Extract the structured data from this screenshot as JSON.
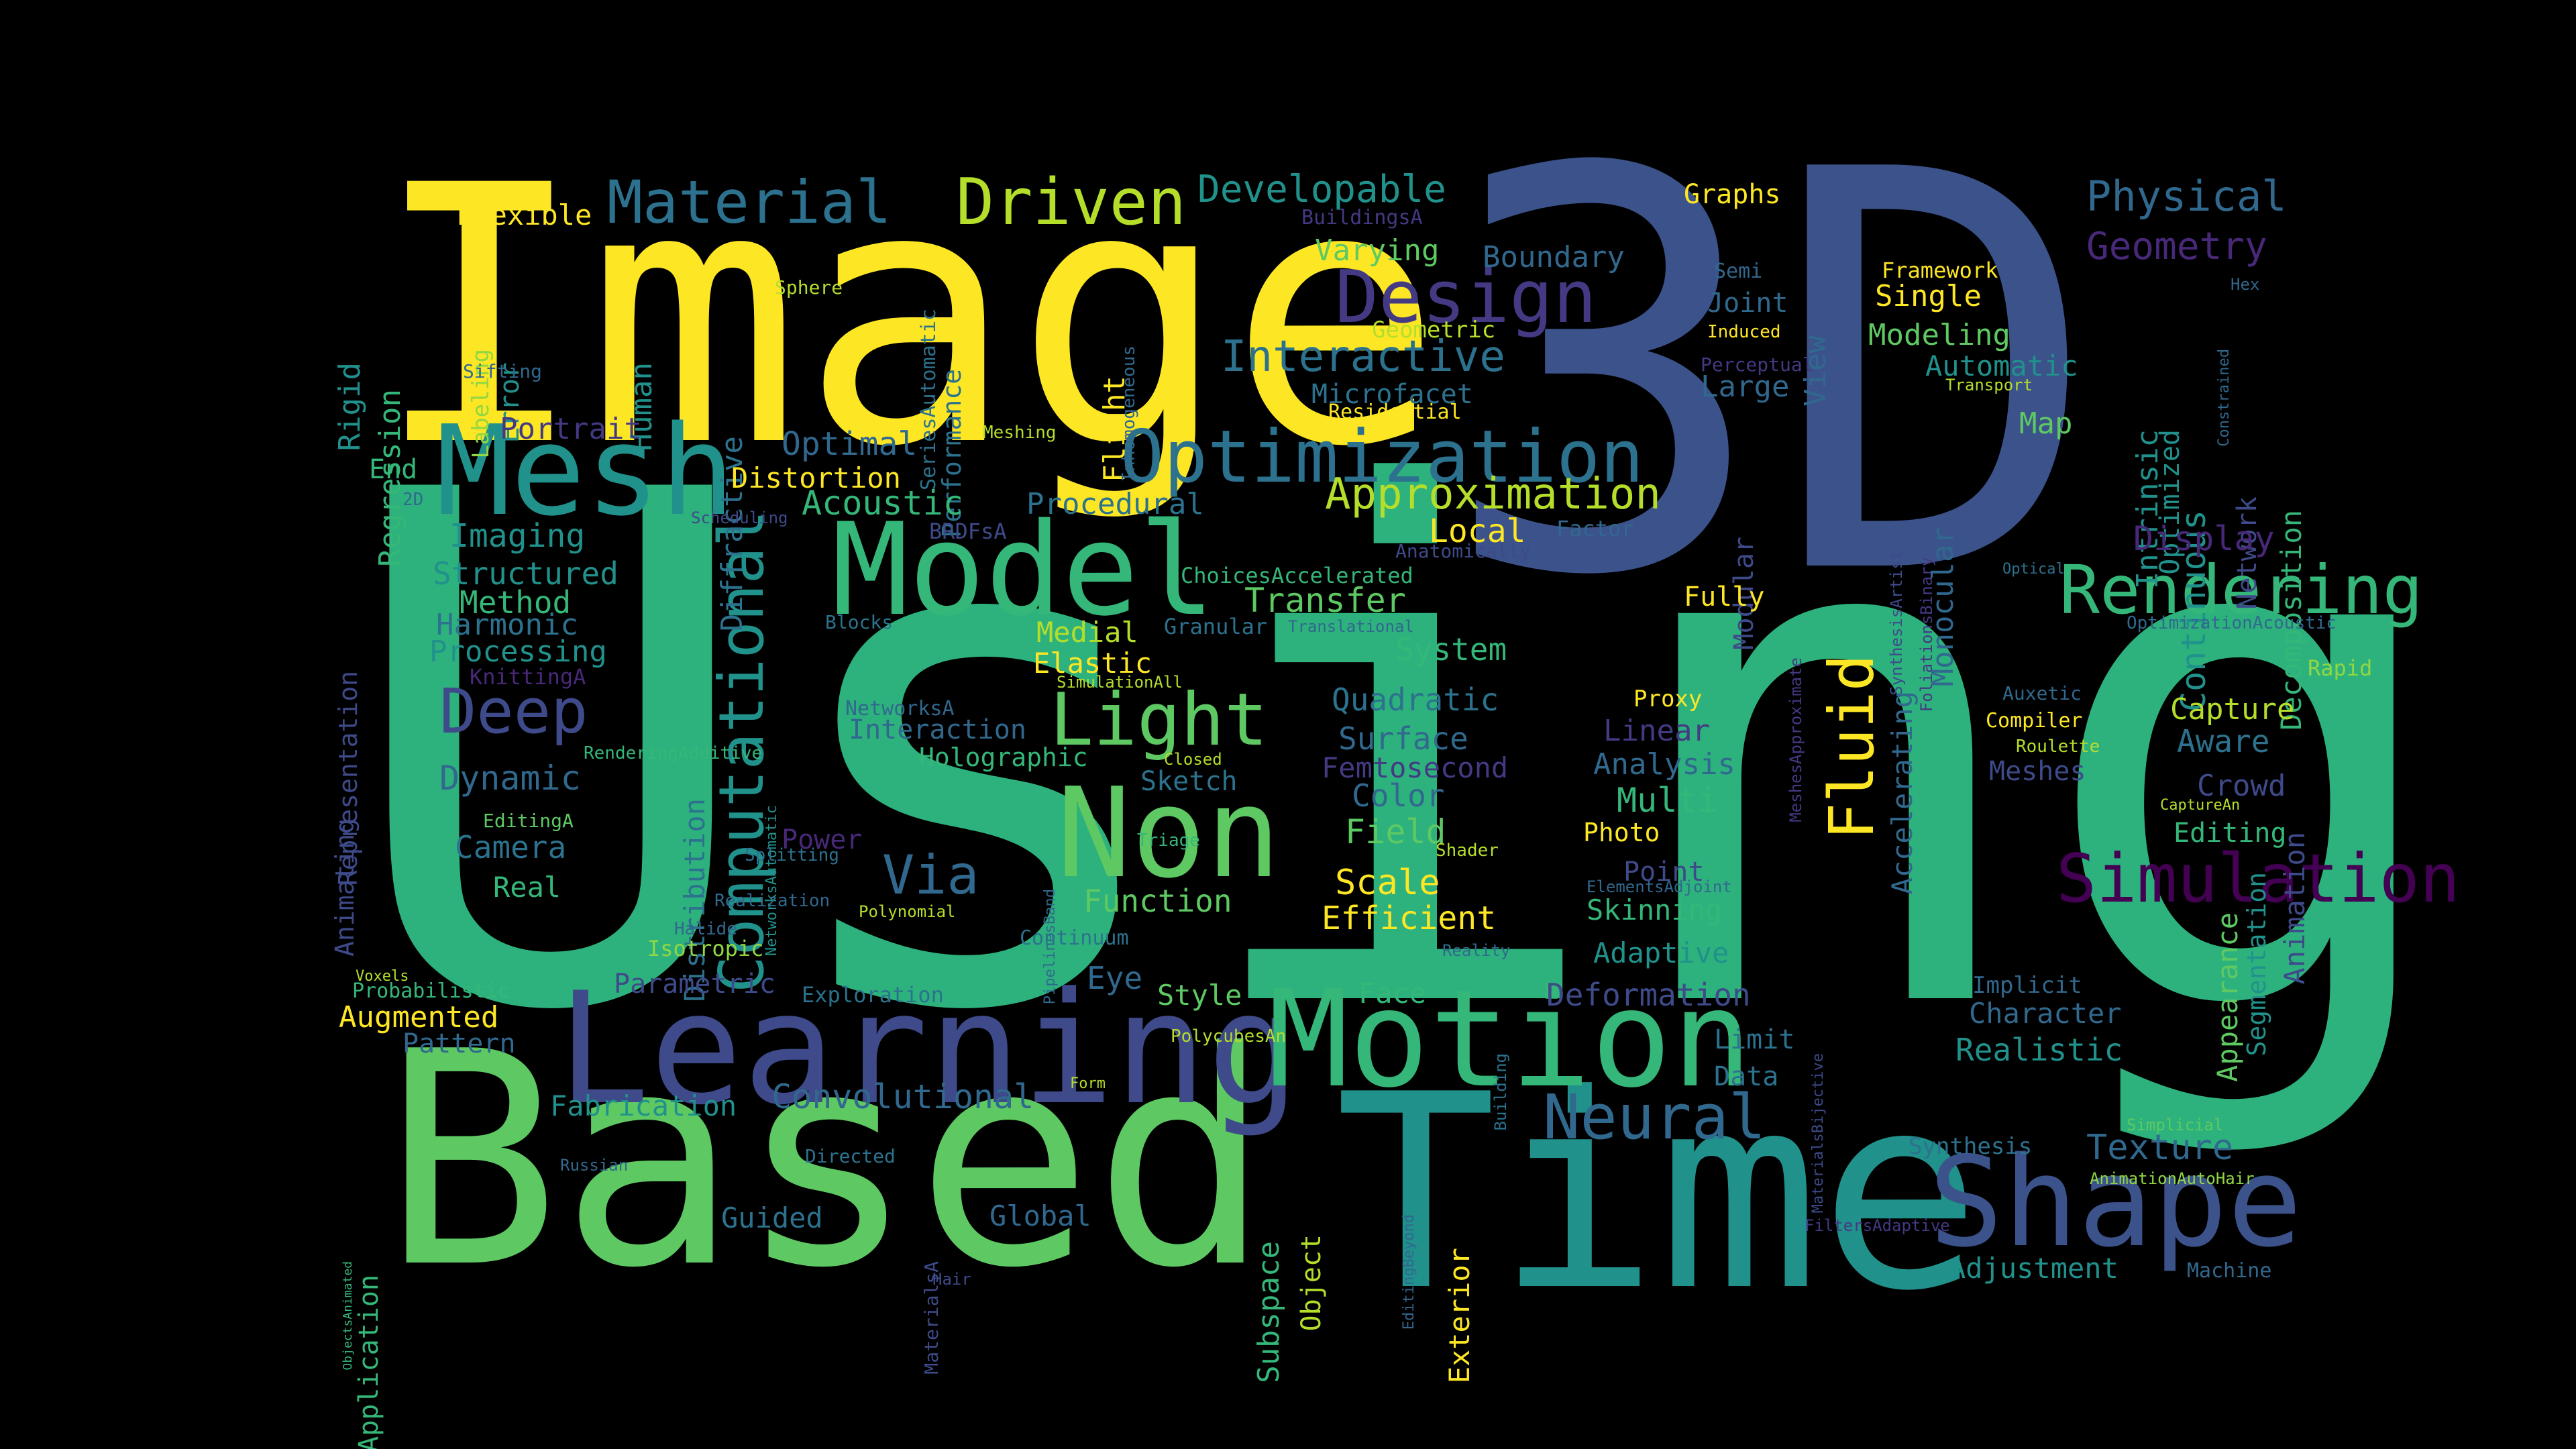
{
  "colors": {
    "background": "#000000",
    "yellow": "#fde725",
    "lime": "#b5de2b",
    "green": "#5ec962",
    "teal_green": "#35b779",
    "teal": "#21918c",
    "blue_teal": "#31688e",
    "blue": "#3e4a89",
    "indigo": "#443983",
    "purple": "#440154"
  },
  "words": [
    {
      "text": "Using",
      "color": "#2db27d"
    },
    {
      "text": "3D",
      "color": "#3b528b"
    },
    {
      "text": "Image",
      "color": "#fde725"
    },
    {
      "text": "Based",
      "color": "#5ec962"
    },
    {
      "text": "Time",
      "color": "#21918c"
    },
    {
      "text": "Learning",
      "color": "#3e4a89"
    },
    {
      "text": "Motion",
      "color": "#35b779"
    },
    {
      "text": "Model",
      "color": "#35b779"
    },
    {
      "text": "Mesh",
      "color": "#21918c"
    },
    {
      "text": "Non",
      "color": "#5ec962"
    },
    {
      "text": "Shape",
      "color": "#3b528b"
    },
    {
      "text": "Optimization",
      "color": "#2c728e"
    },
    {
      "text": "Design",
      "color": "#443983"
    },
    {
      "text": "Material",
      "color": "#2c728e"
    },
    {
      "text": "Driven",
      "color": "#b5de2b"
    },
    {
      "text": "Light",
      "color": "#5ec962"
    },
    {
      "text": "Rendering",
      "color": "#35b779"
    },
    {
      "text": "Neural",
      "color": "#31688e"
    },
    {
      "text": "Simulation",
      "color": "#440154"
    },
    {
      "text": "Fluid",
      "color": "#fde725"
    },
    {
      "text": "Computational",
      "color": "#21918c"
    },
    {
      "text": "Deep",
      "color": "#3e4a89"
    },
    {
      "text": "Via",
      "color": "#31688e"
    },
    {
      "text": "Interactive",
      "color": "#2c728e"
    },
    {
      "text": "Approximation",
      "color": "#b5de2b"
    },
    {
      "text": "Developable",
      "color": "#21918c"
    },
    {
      "text": "Physical",
      "color": "#31688e"
    },
    {
      "text": "Geometry",
      "color": "#482878"
    },
    {
      "text": "Flexible",
      "color": "#fde725"
    },
    {
      "text": "Regression",
      "color": "#35b779"
    },
    {
      "text": "Rigid",
      "color": "#21918c"
    },
    {
      "text": "Human",
      "color": "#21918c"
    },
    {
      "text": "Labeling",
      "color": "#90d743"
    },
    {
      "text": "Error",
      "color": "#21918c"
    },
    {
      "text": "Sifting",
      "color": "#31688e"
    },
    {
      "text": "Diffractive",
      "color": "#2c728e"
    },
    {
      "text": "Sphere",
      "color": "#b5de2b"
    },
    {
      "text": "SeriesAutomatic",
      "color": "#2c728e"
    },
    {
      "text": "Performance",
      "color": "#2c728e"
    },
    {
      "text": "Optimized",
      "color": "#21918c"
    },
    {
      "text": "Flight",
      "color": "#fde725"
    },
    {
      "text": "BuildingsA",
      "color": "#443983"
    },
    {
      "text": "Varying",
      "color": "#5ec962"
    },
    {
      "text": "Boundary",
      "color": "#31688e"
    },
    {
      "text": "Geometric",
      "color": "#b5de2b"
    },
    {
      "text": "Microfacet",
      "color": "#2c728e"
    },
    {
      "text": "Residential",
      "color": "#fde725"
    },
    {
      "text": "Graphs",
      "color": "#fde725"
    },
    {
      "text": "Semi",
      "color": "#31688e"
    },
    {
      "text": "Joint",
      "color": "#31688e"
    },
    {
      "text": "Induced",
      "color": "#fde725"
    },
    {
      "text": "View",
      "color": "#31688e"
    },
    {
      "text": "Perceptual",
      "color": "#443983"
    },
    {
      "text": "Large",
      "color": "#31688e"
    },
    {
      "text": "Framework",
      "color": "#fde725"
    },
    {
      "text": "Single",
      "color": "#fde725"
    },
    {
      "text": "Modeling",
      "color": "#5ec962"
    },
    {
      "text": "Automatic",
      "color": "#21918c"
    },
    {
      "text": "Transport",
      "color": "#b5de2b"
    },
    {
      "text": "Intrinsic",
      "color": "#21918c"
    },
    {
      "text": "Continuous",
      "color": "#21918c"
    },
    {
      "text": "Decomposition",
      "color": "#35b779"
    },
    {
      "text": "Network",
      "color": "#3e4a89"
    },
    {
      "text": "Hex",
      "color": "#31688e"
    },
    {
      "text": "Constrained",
      "color": "#31688e"
    },
    {
      "text": "Portrait",
      "color": "#443983"
    },
    {
      "text": "End",
      "color": "#35b779"
    },
    {
      "text": "2D",
      "color": "#31688e"
    },
    {
      "text": "Optimal",
      "color": "#31688e"
    },
    {
      "text": "Meshing",
      "color": "#b5de2b"
    },
    {
      "text": "Distortion",
      "color": "#fde725"
    },
    {
      "text": "Acoustic",
      "color": "#35b779"
    },
    {
      "text": "Procedural",
      "color": "#2c728e"
    },
    {
      "text": "Scheduling",
      "color": "#3e4a89"
    },
    {
      "text": "BRDFsA",
      "color": "#3e4a89"
    },
    {
      "text": "Local",
      "color": "#fde725"
    },
    {
      "text": "Factor",
      "color": "#31688e"
    },
    {
      "text": "Anatomically",
      "color": "#3e4a89"
    },
    {
      "text": "Modular",
      "color": "#3e4a89"
    },
    {
      "text": "SynthesisArtist",
      "color": "#3e4a89"
    },
    {
      "text": "FoliationsBinary",
      "color": "#443983"
    },
    {
      "text": "Monocular",
      "color": "#31688e"
    },
    {
      "text": "Map",
      "color": "#5ec962"
    },
    {
      "text": "Display",
      "color": "#482878"
    },
    {
      "text": "Imaging",
      "color": "#21918c"
    },
    {
      "text": "Structured",
      "color": "#21918c"
    },
    {
      "text": "Method",
      "color": "#35b779"
    },
    {
      "text": "Harmonic",
      "color": "#2c728e"
    },
    {
      "text": "Processing",
      "color": "#21918c"
    },
    {
      "text": "KnittingA",
      "color": "#482878"
    },
    {
      "text": "Representation",
      "color": "#3e4a89"
    },
    {
      "text": "Animating",
      "color": "#3e4a89"
    },
    {
      "text": "ChoicesAccelerated",
      "color": "#35b779"
    },
    {
      "text": "Transfer",
      "color": "#5ec962"
    },
    {
      "text": "Granular",
      "color": "#2c728e"
    },
    {
      "text": "Translational",
      "color": "#31688e"
    },
    {
      "text": "Medial",
      "color": "#b5de2b"
    },
    {
      "text": "Elastic",
      "color": "#fde725"
    },
    {
      "text": "SimulationAll",
      "color": "#b5de2b"
    },
    {
      "text": "Blocks",
      "color": "#2c728e"
    },
    {
      "text": "Fully",
      "color": "#fde725"
    },
    {
      "text": "MeshesApproximate",
      "color": "#443983"
    },
    {
      "text": "Optical",
      "color": "#2c728e"
    },
    {
      "text": "OptimizationAcoustic",
      "color": "#31688e"
    },
    {
      "text": "System",
      "color": "#35b779"
    },
    {
      "text": "Rapid",
      "color": "#90d743"
    },
    {
      "text": "Capture",
      "color": "#b5de2b"
    },
    {
      "text": "Aware",
      "color": "#2c728e"
    },
    {
      "text": "Auxetic",
      "color": "#31688e"
    },
    {
      "text": "Compiler",
      "color": "#fde725"
    },
    {
      "text": "Roulette",
      "color": "#b5de2b"
    },
    {
      "text": "Meshes",
      "color": "#3e4a89"
    },
    {
      "text": "Crowd",
      "color": "#3e4a89"
    },
    {
      "text": "CaptureAn",
      "color": "#b5de2b"
    },
    {
      "text": "Editing",
      "color": "#35b779"
    },
    {
      "text": "Animation",
      "color": "#3e4a89"
    },
    {
      "text": "Segmentation",
      "color": "#21918c"
    },
    {
      "text": "Appearance",
      "color": "#5ec962"
    },
    {
      "text": "Accelerating",
      "color": "#31688e"
    },
    {
      "text": "Quadratic",
      "color": "#2c728e"
    },
    {
      "text": "Surface",
      "color": "#31688e"
    },
    {
      "text": "Femtosecond",
      "color": "#443983"
    },
    {
      "text": "Color",
      "color": "#31688e"
    },
    {
      "text": "Field",
      "color": "#5ec962"
    },
    {
      "text": "Scale",
      "color": "#fde725"
    },
    {
      "text": "Efficient",
      "color": "#fde725"
    },
    {
      "text": "Shader",
      "color": "#b5de2b"
    },
    {
      "text": "Proxy",
      "color": "#fde725"
    },
    {
      "text": "Linear",
      "color": "#443983"
    },
    {
      "text": "Analysis",
      "color": "#31688e"
    },
    {
      "text": "Multi",
      "color": "#35b779"
    },
    {
      "text": "Photo",
      "color": "#fde725"
    },
    {
      "text": "Point",
      "color": "#3e4a89"
    },
    {
      "text": "ElementsAdjoint",
      "color": "#31688e"
    },
    {
      "text": "Skinning",
      "color": "#35b779"
    },
    {
      "text": "Adaptive",
      "color": "#21918c"
    },
    {
      "text": "Reality",
      "color": "#31688e"
    },
    {
      "text": "NetworksA",
      "color": "#31688e"
    },
    {
      "text": "Interaction",
      "color": "#31688e"
    },
    {
      "text": "Holographic",
      "color": "#35b779"
    },
    {
      "text": "Distribution",
      "color": "#2c728e"
    },
    {
      "text": "RenderingAdditive",
      "color": "#35b779"
    },
    {
      "text": "NetworksAutomatic",
      "color": "#21918c"
    },
    {
      "text": "Closed",
      "color": "#b5de2b"
    },
    {
      "text": "Sketch",
      "color": "#2c728e"
    },
    {
      "text": "Dynamic",
      "color": "#31688e"
    },
    {
      "text": "EditingA",
      "color": "#5ec962"
    },
    {
      "text": "Camera",
      "color": "#2c728e"
    },
    {
      "text": "Real",
      "color": "#35b779"
    },
    {
      "text": "Power",
      "color": "#482878"
    },
    {
      "text": "Splitting",
      "color": "#2c728e"
    },
    {
      "text": "Realization",
      "color": "#31688e"
    },
    {
      "text": "Polynomial",
      "color": "#b5de2b"
    },
    {
      "text": "PipelinesBand",
      "color": "#31688e"
    },
    {
      "text": "Triage",
      "color": "#35b779"
    },
    {
      "text": "Function",
      "color": "#5ec962"
    },
    {
      "text": "Continuum",
      "color": "#2c728e"
    },
    {
      "text": "Halide",
      "color": "#31688e"
    },
    {
      "text": "Isotropic",
      "color": "#90d743"
    },
    {
      "text": "Voxels",
      "color": "#b5de2b"
    },
    {
      "text": "Probabilistic",
      "color": "#35b779"
    },
    {
      "text": "Augmented",
      "color": "#fde725"
    },
    {
      "text": "Pattern",
      "color": "#31688e"
    },
    {
      "text": "Parametric",
      "color": "#3e4a89"
    },
    {
      "text": "Exploration",
      "color": "#2c728e"
    },
    {
      "text": "Eye",
      "color": "#31688e"
    },
    {
      "text": "Style",
      "color": "#5ec962"
    },
    {
      "text": "Face",
      "color": "#35b779"
    },
    {
      "text": "Deformation",
      "color": "#3e4a89"
    },
    {
      "text": "PolycubesAn",
      "color": "#b5de2b"
    },
    {
      "text": "Building",
      "color": "#2c728e"
    },
    {
      "text": "Limit",
      "color": "#2c728e"
    },
    {
      "text": "Data",
      "color": "#2c728e"
    },
    {
      "text": "MaterialsBijective",
      "color": "#3e4a89"
    },
    {
      "text": "Implicit",
      "color": "#31688e"
    },
    {
      "text": "Character",
      "color": "#31688e"
    },
    {
      "text": "Realistic",
      "color": "#21918c"
    },
    {
      "text": "Fabrication",
      "color": "#21918c"
    },
    {
      "text": "Convolutional",
      "color": "#31688e"
    },
    {
      "text": "Form",
      "color": "#b5de2b"
    },
    {
      "text": "Subspace",
      "color": "#35b779"
    },
    {
      "text": "Object",
      "color": "#b5de2b"
    },
    {
      "text": "Exterior",
      "color": "#fde725"
    },
    {
      "text": "EditingBeyond",
      "color": "#31688e"
    },
    {
      "text": "Synthesis",
      "color": "#2c728e"
    },
    {
      "text": "Texture",
      "color": "#31688e"
    },
    {
      "text": "Simplicial",
      "color": "#5ec962"
    },
    {
      "text": "AnimationAutoHair",
      "color": "#90d743"
    },
    {
      "text": "FiltersAdaptive",
      "color": "#443983"
    },
    {
      "text": "Adjustment",
      "color": "#21918c"
    },
    {
      "text": "Machine",
      "color": "#31688e"
    },
    {
      "text": "Application",
      "color": "#35b779"
    },
    {
      "text": "ObjectsAnimated",
      "color": "#35b779"
    },
    {
      "text": "Russian",
      "color": "#31688e"
    },
    {
      "text": "Directed",
      "color": "#2c728e"
    },
    {
      "text": "MaterialsA",
      "color": "#3e4a89"
    },
    {
      "text": "Guided",
      "color": "#2c728e"
    },
    {
      "text": "Global",
      "color": "#31688e"
    },
    {
      "text": "Hair",
      "color": "#3e4a89"
    },
    {
      "text": "Inhomogeneous",
      "color": "#31688e"
    }
  ]
}
